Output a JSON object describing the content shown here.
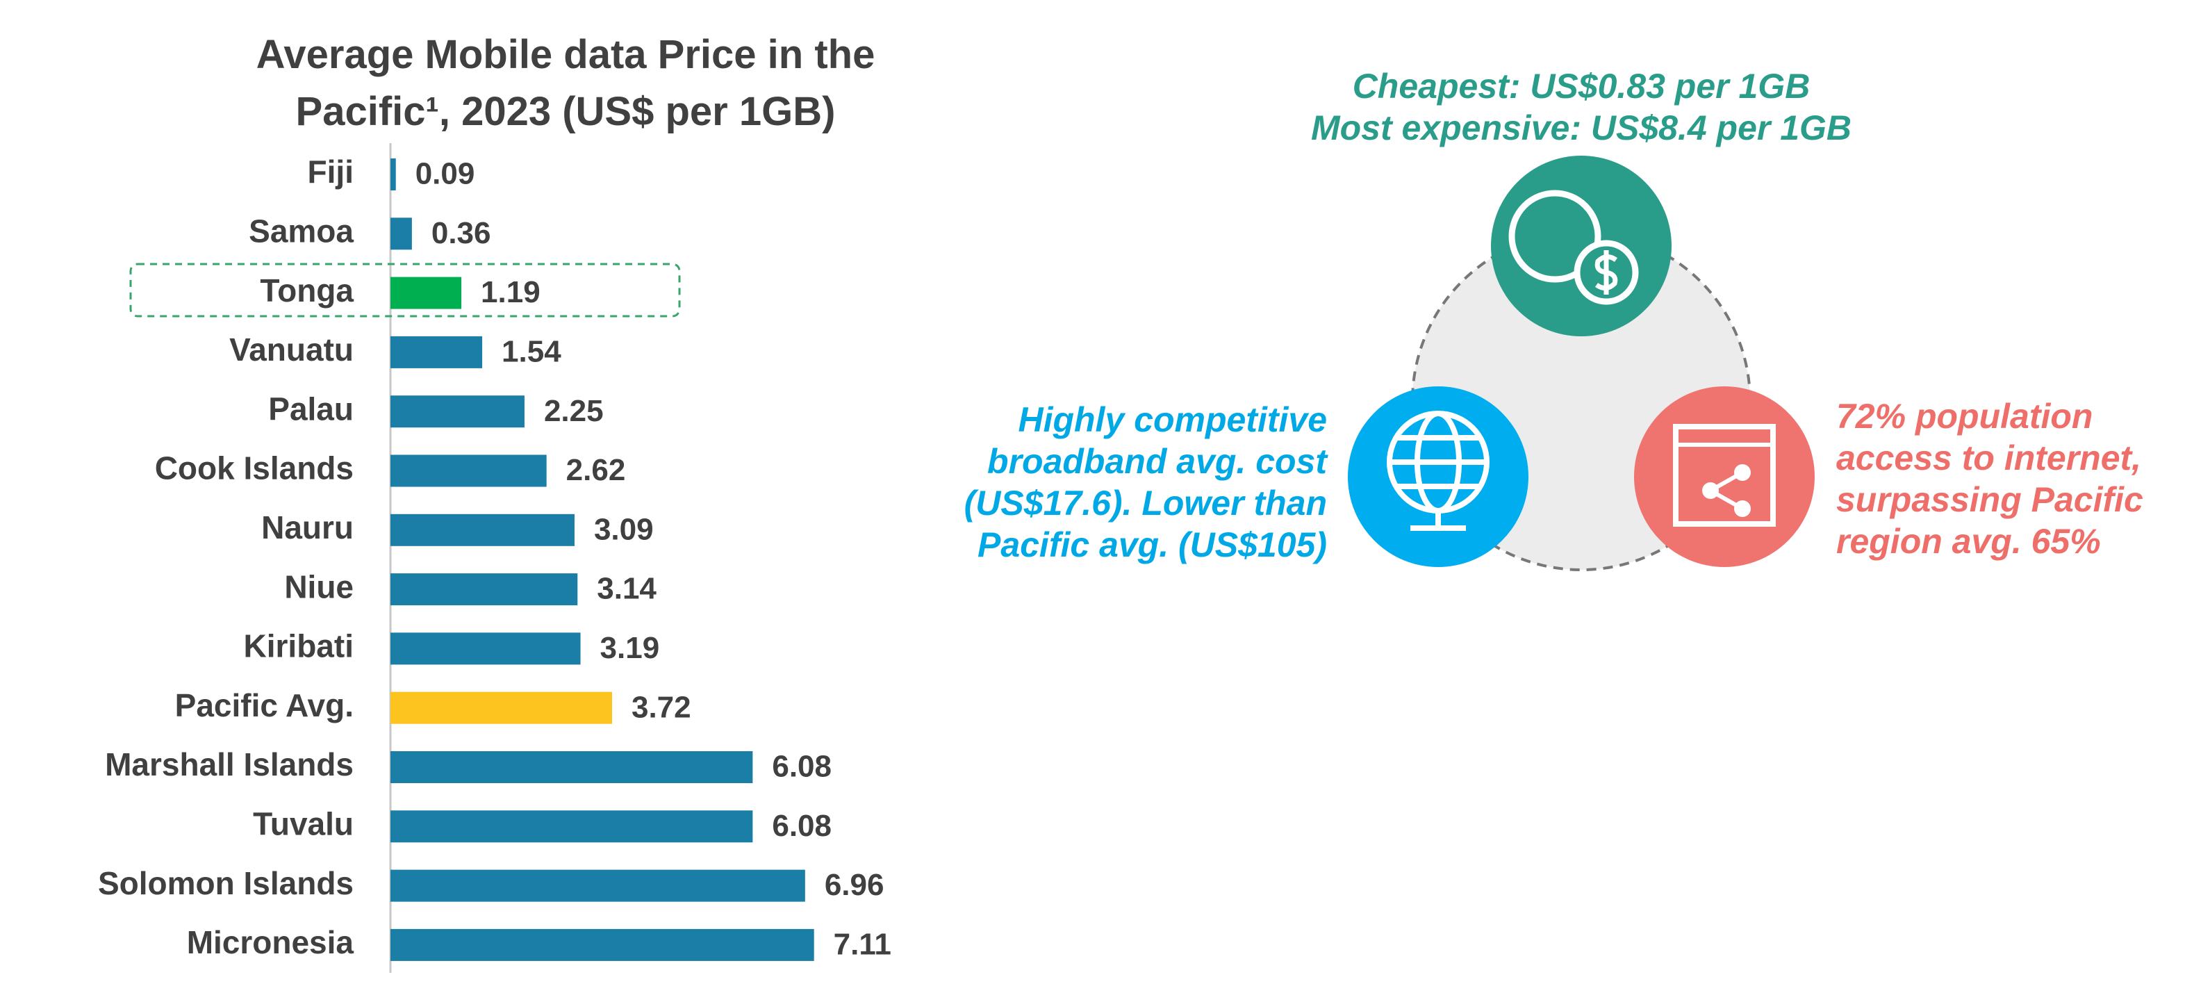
{
  "chart_data": {
    "type": "barh",
    "title": "Average Mobile data Price in the\nPacific¹, 2023 (US$ per 1GB)",
    "categories": [
      "Fiji",
      "Samoa",
      "Tonga",
      "Vanuatu",
      "Palau",
      "Cook Islands",
      "Nauru",
      "Niue",
      "Kiribati",
      "Pacific Avg.",
      "Marshall Islands",
      "Tuvalu",
      "Solomon Islands",
      "Micronesia"
    ],
    "values": [
      0.09,
      0.36,
      1.19,
      1.54,
      2.25,
      2.62,
      3.09,
      3.14,
      3.19,
      3.72,
      6.08,
      6.08,
      6.96,
      7.11
    ],
    "colors": [
      "#1a7ea6",
      "#1a7ea6",
      "#00b050",
      "#1a7ea6",
      "#1a7ea6",
      "#1a7ea6",
      "#1a7ea6",
      "#1a7ea6",
      "#1a7ea6",
      "#fdc31f",
      "#1a7ea6",
      "#1a7ea6",
      "#1a7ea6",
      "#1a7ea6"
    ],
    "xlim": [
      0,
      8
    ]
  },
  "infographic": {
    "top": [
      "Cheapest: US$0.83 per 1GB",
      "Most expensive: US$8.4 per 1GB"
    ],
    "left": [
      "Highly competitive",
      "broadband avg. cost",
      "(US$17.6). Lower than",
      "Pacific avg. (US$105)"
    ],
    "right": [
      "72% population",
      "access to internet,",
      "surpassing Pacific",
      "region avg. 65%"
    ]
  }
}
